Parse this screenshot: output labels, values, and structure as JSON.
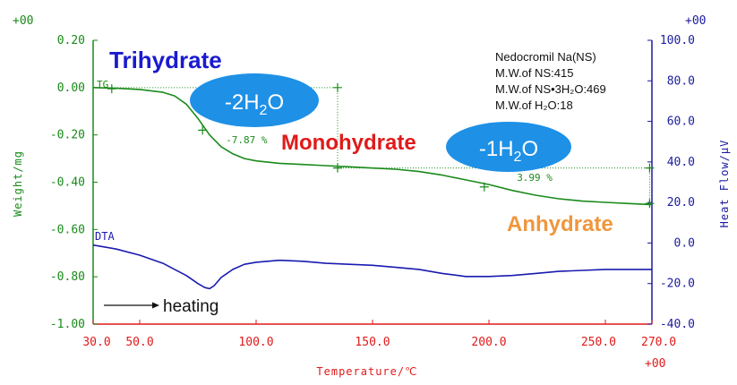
{
  "chart_data": {
    "type": "line",
    "xlabel": "Temperature/℃",
    "ylabel_left": "Weight/mg",
    "ylabel_right": "Heat Flow/μV",
    "xlim": [
      30,
      270
    ],
    "ylim_left": [
      -1.0,
      0.2
    ],
    "ylim_right": [
      -40,
      100
    ],
    "x_ticks": [
      "30.0",
      "50.0",
      "100.0",
      "150.0",
      "200.0",
      "250.0",
      "270.0"
    ],
    "y_left_ticks": [
      "0.20",
      "0.00",
      "-0.20",
      "-0.40",
      "-0.60",
      "-0.80",
      "-1.00"
    ],
    "y_right_ticks": [
      "100.0",
      "80.0",
      "60.0",
      "40.0",
      "20.0",
      "0.0",
      "-20.0",
      "-40.0"
    ],
    "corner_labels": {
      "left_top": "+00",
      "right_top": "+00",
      "bottom_right": "+00"
    },
    "series": [
      {
        "name": "TG",
        "color": "#1a8a1a",
        "axis": "left",
        "x": [
          30,
          40,
          50,
          60,
          65,
          70,
          75,
          80,
          85,
          90,
          95,
          100,
          110,
          120,
          130,
          140,
          150,
          160,
          170,
          180,
          190,
          200,
          210,
          220,
          230,
          240,
          250,
          260,
          270
        ],
        "y": [
          0.0,
          -0.003,
          -0.008,
          -0.02,
          -0.035,
          -0.07,
          -0.13,
          -0.2,
          -0.25,
          -0.28,
          -0.3,
          -0.31,
          -0.32,
          -0.325,
          -0.33,
          -0.335,
          -0.34,
          -0.345,
          -0.355,
          -0.37,
          -0.39,
          -0.41,
          -0.435,
          -0.455,
          -0.47,
          -0.48,
          -0.485,
          -0.49,
          -0.495
        ]
      },
      {
        "name": "DTA",
        "color": "#1a1ab0",
        "axis": "right",
        "x": [
          30,
          40,
          50,
          60,
          65,
          70,
          75,
          78,
          80,
          82,
          85,
          90,
          95,
          100,
          110,
          120,
          130,
          140,
          150,
          160,
          170,
          180,
          190,
          200,
          210,
          220,
          230,
          240,
          250,
          260,
          270
        ],
        "y": [
          -1,
          -3,
          -6,
          -10,
          -13,
          -16,
          -20,
          -22,
          -22.5,
          -21,
          -17,
          -13,
          -10.5,
          -9.5,
          -8.5,
          -9,
          -10,
          -10.5,
          -11,
          -12,
          -13,
          -15,
          -16.5,
          -16.5,
          -16,
          -15,
          -14,
          -13.5,
          -13,
          -13,
          -13
        ]
      }
    ],
    "step_markers": [
      {
        "from_x": 37,
        "to_x": 135,
        "y": 0.0
      },
      {
        "from_x": 135,
        "to_x": 270,
        "y": -0.34
      }
    ],
    "step_labels": [
      {
        "text": "-7.87 %",
        "x": 87,
        "y": -0.22
      },
      {
        "text": "3.99 %",
        "x": 212,
        "y": -0.38
      }
    ],
    "cross_points": [
      {
        "x": 38,
        "y": -0.005
      },
      {
        "x": 135,
        "y": 0.0
      },
      {
        "x": 77,
        "y": -0.18
      },
      {
        "x": 135,
        "y": -0.34
      },
      {
        "x": 198,
        "y": -0.42
      },
      {
        "x": 269,
        "y": -0.34
      },
      {
        "x": 269,
        "y": -0.49
      }
    ],
    "annotations": {
      "trihydrate": "Trihydrate",
      "monohydrate": "Monohydrate",
      "anhydrate": "Anhydrate",
      "heating": "heating",
      "tg_label": "TG",
      "dta_label": "DTA",
      "loss1": {
        "prefix": "-2H",
        "sub": "2",
        "suffix": "O"
      },
      "loss2": {
        "prefix": "-1H",
        "sub": "2",
        "suffix": "O"
      }
    },
    "info_box": {
      "line1": "Nedocromil Na(NS)",
      "line2": "M.W.of NS:415",
      "line3": "M.W.of NS•3H₂O:469",
      "line4": "M.W.of H₂O:18"
    },
    "colors": {
      "tg": "#1a8a1a",
      "dta": "#1a1ab0",
      "x_axis": "#e01a1a",
      "ellipse": "#1e90e6",
      "trihydrate": "#1a1ad0",
      "monohydrate": "#e01a1a",
      "anhydrate": "#f0963c"
    }
  }
}
